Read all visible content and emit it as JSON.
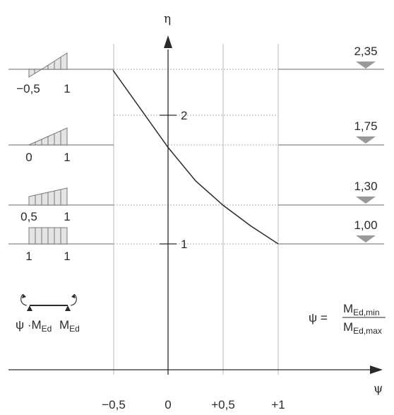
{
  "axes": {
    "x_symbol": "ψ",
    "y_symbol": "η",
    "x_ticks": [
      "−0,5",
      "0",
      "+0,5",
      "+1"
    ],
    "y_ticks": [
      "2",
      "1"
    ]
  },
  "chart_data": {
    "type": "line",
    "xlabel": "ψ",
    "ylabel": "η",
    "x": [
      -0.5,
      -0.25,
      0,
      0.25,
      0.5,
      0.75,
      1.0
    ],
    "y": [
      2.35,
      2.05,
      1.75,
      1.49,
      1.3,
      1.14,
      1.0
    ],
    "levels": [
      2.35,
      1.75,
      1.3,
      1.0
    ],
    "xlim": [
      -1.05,
      1.85
    ],
    "ylim": [
      0.5,
      3.0
    ],
    "grid": true,
    "color": "#2a2a2a"
  },
  "levels": [
    {
      "label": "2,35",
      "left": "−0,5",
      "right": "1"
    },
    {
      "label": "1,75",
      "left": "0",
      "right": "1"
    },
    {
      "label": "1,30",
      "left": "0,5",
      "right": "1"
    },
    {
      "label": "1,00",
      "left": "1",
      "right": "1"
    }
  ],
  "beam": {
    "left_label": "ψ ·M",
    "left_sub": "Ed",
    "right_label": "M",
    "right_sub": "Ed"
  },
  "formula": {
    "lhs": "ψ =",
    "num": "M",
    "num_sub": "Ed,min",
    "den": "M",
    "den_sub": "Ed,max"
  }
}
